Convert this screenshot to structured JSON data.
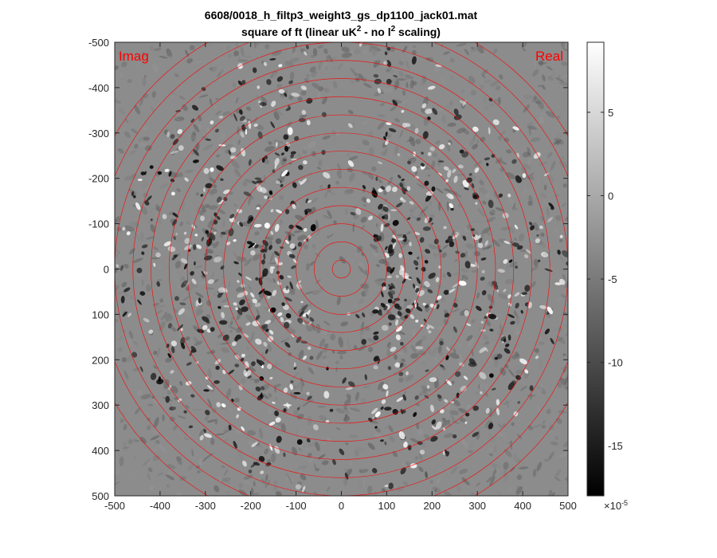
{
  "chart_data": {
    "type": "heatmap",
    "title_line1": "6608/0018_h_filtp3_weight3_gs_dp1100_jack01.mat",
    "title_line2": {
      "a": "square of ft (linear uK",
      "sup1": "2",
      "b": " - no l",
      "sup2": "2",
      "c": " scaling)"
    },
    "xlim": [
      -500,
      500
    ],
    "ylim": [
      -500,
      500
    ],
    "y_reversed": true,
    "x_ticks": [
      -500,
      -400,
      -300,
      -200,
      -100,
      0,
      100,
      200,
      300,
      400,
      500
    ],
    "y_ticks": [
      -500,
      -400,
      -300,
      -200,
      -100,
      0,
      100,
      200,
      300,
      400,
      500
    ],
    "corner_labels": {
      "left": "Imag",
      "right": "Real"
    },
    "ring_color": "#ff0000",
    "ring_radii": [
      20,
      60,
      100,
      140,
      180,
      220,
      260,
      300,
      340,
      380,
      420,
      460,
      500,
      540,
      580
    ],
    "colorbar": {
      "colormap": "gray",
      "clim": [
        -18,
        9.2
      ],
      "ticks": [
        5,
        0,
        -5,
        -10,
        -15
      ],
      "exponent_base": "×10",
      "exponent_power": "-5"
    },
    "grid": false
  }
}
